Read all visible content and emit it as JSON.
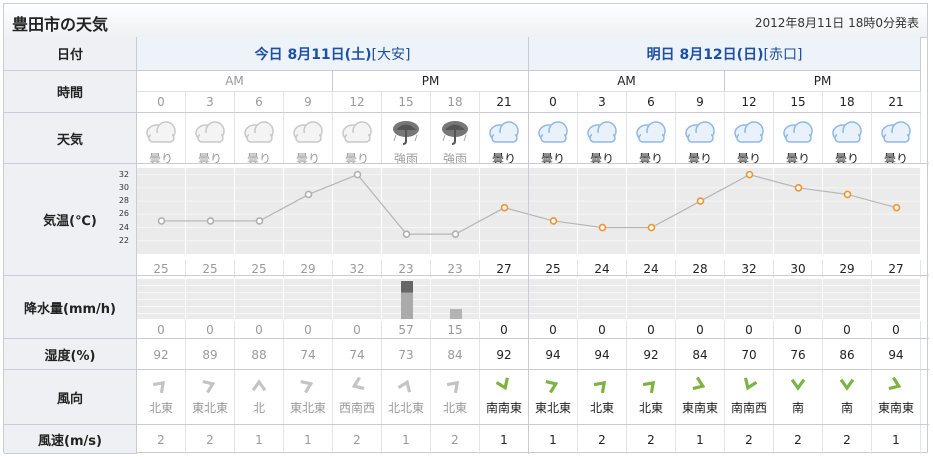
{
  "title": "豊田市の天気",
  "issued": "2012年8月11日 18時0分発表",
  "row_labels": {
    "date": "日付",
    "time": "時間",
    "weather": "天気",
    "temp": "気温(℃)",
    "precip": "降水量(mm/h)",
    "humidity": "湿度(%)",
    "wind_dir": "風向",
    "wind_speed": "風速(m/s)"
  },
  "days": [
    {
      "label": "今日 8月11日(土)",
      "rokuyo": "[大安]"
    },
    {
      "label": "明日 8月12日(日)",
      "rokuyo": "[赤口]"
    }
  ],
  "ampm": [
    "AM",
    "PM",
    "AM",
    "PM"
  ],
  "hours": [
    "0",
    "3",
    "6",
    "9",
    "12",
    "15",
    "18",
    "21",
    "0",
    "3",
    "6",
    "9",
    "12",
    "15",
    "18",
    "21"
  ],
  "past_count": 7,
  "weather": [
    {
      "label": "曇り",
      "icon": "cloud-icon"
    },
    {
      "label": "曇り",
      "icon": "cloud-icon"
    },
    {
      "label": "曇り",
      "icon": "cloud-icon"
    },
    {
      "label": "曇り",
      "icon": "cloud-icon"
    },
    {
      "label": "曇り",
      "icon": "cloud-icon"
    },
    {
      "label": "強雨",
      "icon": "heavy-rain-icon"
    },
    {
      "label": "強雨",
      "icon": "heavy-rain-icon"
    },
    {
      "label": "曇り",
      "icon": "cloud-icon"
    },
    {
      "label": "曇り",
      "icon": "cloud-icon"
    },
    {
      "label": "曇り",
      "icon": "cloud-icon"
    },
    {
      "label": "曇り",
      "icon": "cloud-icon"
    },
    {
      "label": "曇り",
      "icon": "cloud-icon"
    },
    {
      "label": "曇り",
      "icon": "cloud-icon"
    },
    {
      "label": "曇り",
      "icon": "cloud-icon"
    },
    {
      "label": "曇り",
      "icon": "cloud-icon"
    },
    {
      "label": "曇り",
      "icon": "cloud-icon"
    }
  ],
  "chart_data": {
    "type": "line",
    "x": [
      "0",
      "3",
      "6",
      "9",
      "12",
      "15",
      "18",
      "21",
      "0",
      "3",
      "6",
      "9",
      "12",
      "15",
      "18",
      "21"
    ],
    "series": [
      {
        "values": [
          25,
          25,
          25,
          29,
          32,
          23,
          23,
          27,
          25,
          24,
          24,
          28,
          32,
          30,
          29,
          27
        ]
      }
    ],
    "ylim": [
      20,
      33
    ],
    "yticks": [
      "32",
      "30",
      "28",
      "26",
      "24",
      "22"
    ],
    "precip": [
      0,
      0,
      0,
      0,
      0,
      57,
      15,
      0,
      0,
      0,
      0,
      0,
      0,
      0,
      0,
      0
    ]
  },
  "temperature": [
    "25",
    "25",
    "25",
    "29",
    "32",
    "23",
    "23",
    "27",
    "25",
    "24",
    "24",
    "28",
    "32",
    "30",
    "29",
    "27"
  ],
  "precipitation": [
    "0",
    "0",
    "0",
    "0",
    "0",
    "57",
    "15",
    "0",
    "0",
    "0",
    "0",
    "0",
    "0",
    "0",
    "0",
    "0"
  ],
  "humidity": [
    "92",
    "89",
    "88",
    "74",
    "74",
    "73",
    "84",
    "92",
    "94",
    "94",
    "92",
    "84",
    "70",
    "76",
    "86",
    "94"
  ],
  "wind_dir": [
    "北東",
    "東北東",
    "北",
    "東北東",
    "西南西",
    "北北東",
    "北東",
    "南南東",
    "東北東",
    "北東",
    "北東",
    "東南東",
    "南南西",
    "南",
    "南",
    "東南東"
  ],
  "wind_speed": [
    "2",
    "2",
    "1",
    "1",
    "2",
    "1",
    "2",
    "1",
    "1",
    "2",
    "2",
    "1",
    "2",
    "2",
    "2",
    "1"
  ],
  "colors": {
    "accent": "#1d4fa3",
    "future_marker": "#f0932b",
    "wind_arrow_future": "#7cb342",
    "past_gray": "#9a9a9a"
  }
}
